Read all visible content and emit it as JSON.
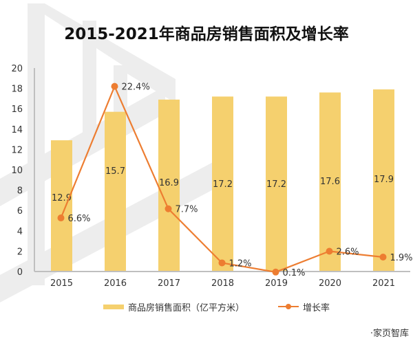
{
  "chart_data": {
    "type": "bar+line",
    "title": "2015-2021年商品房销售面积及增长率",
    "categories": [
      "2015",
      "2016",
      "2017",
      "2018",
      "2019",
      "2020",
      "2021"
    ],
    "series": [
      {
        "name": "商品房销售面积（亿平方米）",
        "type": "bar",
        "axis": "left",
        "values": [
          12.9,
          15.7,
          16.9,
          17.2,
          17.2,
          17.6,
          17.9
        ],
        "labels": [
          "12.9",
          "15.7",
          "16.9",
          "17.2",
          "17.2",
          "17.6",
          "17.9"
        ],
        "color": "#F5D06E"
      },
      {
        "name": "增长率",
        "type": "line",
        "axis": "right-hidden",
        "values": [
          6.6,
          22.4,
          7.7,
          1.2,
          0.1,
          2.6,
          1.9
        ],
        "labels": [
          "6.6%",
          "22.4%",
          "7.7%",
          "1.2%",
          "0.1%",
          "2.6%",
          "1.9%"
        ],
        "color": "#ED7D31"
      }
    ],
    "yticks": [
      "0",
      "2",
      "4",
      "6",
      "8",
      "10",
      "12",
      "14",
      "16",
      "18",
      "20"
    ],
    "ylim": [
      0,
      20
    ],
    "y2lim": [
      0,
      24.6
    ],
    "legend_position": "bottom",
    "grid": false
  },
  "legend": {
    "bar_label": "商品房销售面积（亿平方米）",
    "line_label": "增长率"
  },
  "footer": "·家页智库",
  "colors": {
    "bar": "#F5D06E",
    "line": "#ED7D31",
    "axis": "#BFBFBF",
    "watermark": "#EBEBEB"
  }
}
